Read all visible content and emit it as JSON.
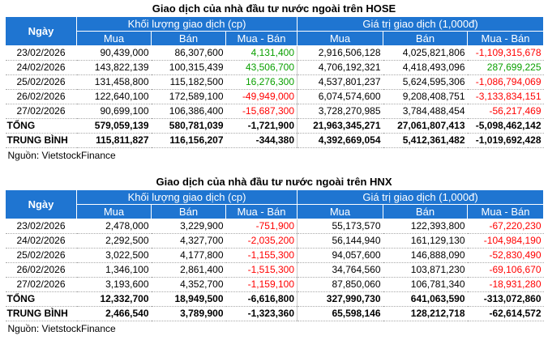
{
  "tables": [
    {
      "title": "Giao dịch của nhà đầu tư nước ngoài trên HOSE",
      "headers": {
        "ngay": "Ngày",
        "group_volume": "Khối lượng giao dịch (cp)",
        "group_value": "Giá trị giao dịch (1,000đ)",
        "mua": "Mua",
        "ban": "Bán",
        "mua_ban": "Mua - Bán"
      },
      "rows": [
        {
          "date": "23/02/2026",
          "vol_mua": "90,439,000",
          "vol_ban": "86,307,600",
          "vol_net": "4,131,400",
          "vol_net_sign": "pos",
          "val_mua": "2,916,506,128",
          "val_ban": "4,025,821,806",
          "val_net": "-1,109,315,678",
          "val_net_sign": "neg"
        },
        {
          "date": "24/02/2026",
          "vol_mua": "143,822,139",
          "vol_ban": "100,315,439",
          "vol_net": "43,506,700",
          "vol_net_sign": "pos",
          "val_mua": "4,706,192,321",
          "val_ban": "4,418,493,096",
          "val_net": "287,699,225",
          "val_net_sign": "pos"
        },
        {
          "date": "25/02/2026",
          "vol_mua": "131,458,800",
          "vol_ban": "115,182,500",
          "vol_net": "16,276,300",
          "vol_net_sign": "pos",
          "val_mua": "4,537,801,237",
          "val_ban": "5,624,595,306",
          "val_net": "-1,086,794,069",
          "val_net_sign": "neg"
        },
        {
          "date": "26/02/2026",
          "vol_mua": "122,640,100",
          "vol_ban": "172,589,100",
          "vol_net": "-49,949,000",
          "vol_net_sign": "neg",
          "val_mua": "6,074,574,600",
          "val_ban": "9,208,408,751",
          "val_net": "-3,133,834,151",
          "val_net_sign": "neg"
        },
        {
          "date": "27/02/2026",
          "vol_mua": "90,699,100",
          "vol_ban": "106,386,400",
          "vol_net": "-15,687,300",
          "vol_net_sign": "neg",
          "val_mua": "3,728,270,985",
          "val_ban": "3,784,488,454",
          "val_net": "-56,217,469",
          "val_net_sign": "neg"
        }
      ],
      "total": {
        "label": "TỔNG",
        "vol_mua": "579,059,139",
        "vol_ban": "580,781,039",
        "vol_net": "-1,721,900",
        "val_mua": "21,963,345,271",
        "val_ban": "27,061,807,413",
        "val_net": "-5,098,462,142"
      },
      "average": {
        "label": "TRUNG BÌNH",
        "vol_mua": "115,811,827",
        "vol_ban": "116,156,207",
        "vol_net": "-344,380",
        "val_mua": "4,392,669,054",
        "val_ban": "5,412,361,482",
        "val_net": "-1,019,692,428"
      },
      "source": "Nguồn: VietstockFinance"
    },
    {
      "title": "Giao dịch của nhà đầu tư nước ngoài trên HNX",
      "headers": {
        "ngay": "Ngày",
        "group_volume": "Khối lượng giao dịch (cp)",
        "group_value": "Giá trị giao dịch (1,000đ)",
        "mua": "Mua",
        "ban": "Bán",
        "mua_ban": "Mua - Bán"
      },
      "rows": [
        {
          "date": "23/02/2026",
          "vol_mua": "2,478,000",
          "vol_ban": "3,229,900",
          "vol_net": "-751,900",
          "vol_net_sign": "neg",
          "val_mua": "55,173,570",
          "val_ban": "122,393,800",
          "val_net": "-67,220,230",
          "val_net_sign": "neg"
        },
        {
          "date": "24/02/2026",
          "vol_mua": "2,292,500",
          "vol_ban": "4,327,700",
          "vol_net": "-2,035,200",
          "vol_net_sign": "neg",
          "val_mua": "56,144,940",
          "val_ban": "161,129,130",
          "val_net": "-104,984,190",
          "val_net_sign": "neg"
        },
        {
          "date": "25/02/2026",
          "vol_mua": "3,022,500",
          "vol_ban": "4,177,800",
          "vol_net": "-1,155,300",
          "vol_net_sign": "neg",
          "val_mua": "94,057,600",
          "val_ban": "146,888,090",
          "val_net": "-52,830,490",
          "val_net_sign": "neg"
        },
        {
          "date": "26/02/2026",
          "vol_mua": "1,346,100",
          "vol_ban": "2,861,400",
          "vol_net": "-1,515,300",
          "vol_net_sign": "neg",
          "val_mua": "34,764,560",
          "val_ban": "103,871,230",
          "val_net": "-69,106,670",
          "val_net_sign": "neg"
        },
        {
          "date": "27/02/2026",
          "vol_mua": "3,193,600",
          "vol_ban": "4,352,700",
          "vol_net": "-1,159,100",
          "vol_net_sign": "neg",
          "val_mua": "87,850,060",
          "val_ban": "106,781,340",
          "val_net": "-18,931,280",
          "val_net_sign": "neg"
        }
      ],
      "total": {
        "label": "TỔNG",
        "vol_mua": "12,332,700",
        "vol_ban": "18,949,500",
        "vol_net": "-6,616,800",
        "val_mua": "327,990,730",
        "val_ban": "641,063,590",
        "val_net": "-313,072,860"
      },
      "average": {
        "label": "TRUNG BÌNH",
        "vol_mua": "2,466,540",
        "vol_ban": "3,789,900",
        "vol_net": "-1,323,360",
        "val_mua": "65,598,146",
        "val_ban": "128,212,718",
        "val_net": "-62,614,572"
      },
      "source": "Nguồn: VietstockFinance"
    }
  ],
  "colors": {
    "header_bg": "#1f75d1",
    "header_text": "#ffffff",
    "positive": "#0aa000",
    "negative": "#ff0000"
  }
}
